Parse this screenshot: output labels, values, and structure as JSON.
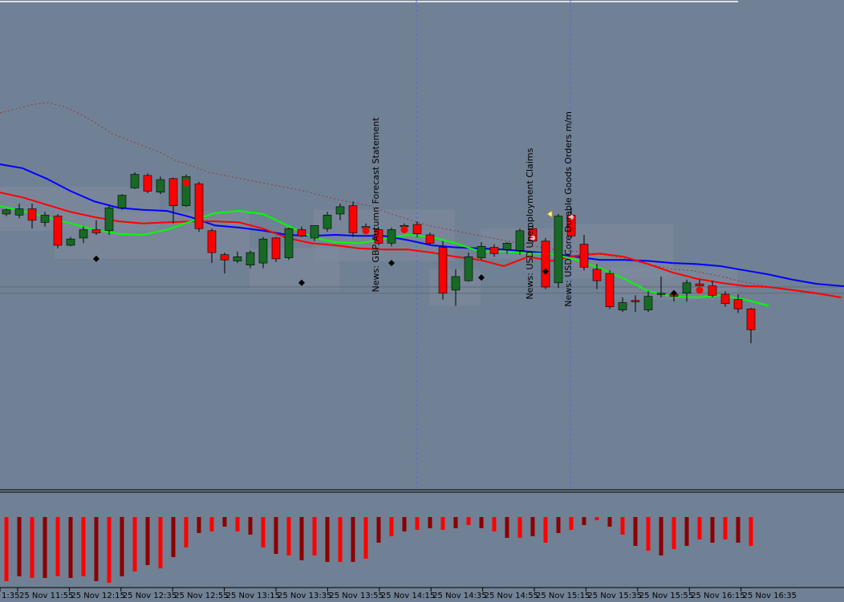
{
  "chart_data": {
    "type": "candlestick",
    "panels": [
      "price",
      "histogram"
    ],
    "colors": {
      "background": "#718195",
      "bull_candle": "#176a25",
      "bear_candle": "#ff0000",
      "wick": "#000000",
      "ma_blue": "#0000ff",
      "ma_red": "#ff0000",
      "ma_green": "#00ff00",
      "ma_dotted": "#8b3a3a",
      "zone": "#7f8b9c",
      "hist_bright": "#ff0000",
      "hist_dark": "#8b0000",
      "vline": "#5566cc"
    },
    "x_labels": [
      "1:35",
      "25 Nov 11:55",
      "25 Nov 12:15",
      "25 Nov 12:35",
      "25 Nov 12:55",
      "25 Nov 13:15",
      "25 Nov 13:35",
      "25 Nov 13:55",
      "25 Nov 14:15",
      "25 Nov 14:35",
      "25 Nov 14:55",
      "25 Nov 15:15",
      "25 Nov 15:35",
      "25 Nov 15:55",
      "25 Nov 16:15",
      "25 Nov 16:35"
    ],
    "candles": [
      {
        "o": 260,
        "h": 265,
        "l": 258,
        "c": 264
      },
      {
        "o": 259,
        "h": 270,
        "l": 256,
        "c": 265
      },
      {
        "o": 265,
        "h": 270,
        "l": 246,
        "c": 254
      },
      {
        "o": 252,
        "h": 262,
        "l": 248,
        "c": 259
      },
      {
        "o": 258,
        "h": 260,
        "l": 227,
        "c": 230
      },
      {
        "o": 230,
        "h": 238,
        "l": 229,
        "c": 236
      },
      {
        "o": 237,
        "h": 248,
        "l": 232,
        "c": 245
      },
      {
        "o": 245,
        "h": 254,
        "l": 240,
        "c": 242
      },
      {
        "o": 244,
        "h": 268,
        "l": 240,
        "c": 266
      },
      {
        "o": 266,
        "h": 279,
        "l": 264,
        "c": 278
      },
      {
        "o": 285,
        "h": 300,
        "l": 284,
        "c": 298
      },
      {
        "o": 297,
        "h": 299,
        "l": 280,
        "c": 282
      },
      {
        "o": 281,
        "h": 296,
        "l": 279,
        "c": 293
      },
      {
        "o": 294,
        "h": 295,
        "l": 251,
        "c": 268
      },
      {
        "o": 268,
        "h": 298,
        "l": 267,
        "c": 296
      },
      {
        "o": 289,
        "h": 291,
        "l": 243,
        "c": 246
      },
      {
        "o": 244,
        "h": 246,
        "l": 213,
        "c": 223
      },
      {
        "o": 221,
        "h": 223,
        "l": 203,
        "c": 216
      },
      {
        "o": 215,
        "h": 224,
        "l": 213,
        "c": 219
      },
      {
        "o": 211,
        "h": 225,
        "l": 208,
        "c": 223
      },
      {
        "o": 213,
        "h": 238,
        "l": 208,
        "c": 236
      },
      {
        "o": 237,
        "h": 238,
        "l": 214,
        "c": 217
      },
      {
        "o": 218,
        "h": 247,
        "l": 216,
        "c": 246
      },
      {
        "o": 245,
        "h": 248,
        "l": 238,
        "c": 239
      },
      {
        "o": 237,
        "h": 249,
        "l": 234,
        "c": 249
      },
      {
        "o": 246,
        "h": 262,
        "l": 243,
        "c": 259
      },
      {
        "o": 260,
        "h": 270,
        "l": 254,
        "c": 267
      },
      {
        "o": 268,
        "h": 272,
        "l": 238,
        "c": 242
      },
      {
        "o": 248,
        "h": 251,
        "l": 247,
        "c": 248
      },
      {
        "o": 245,
        "h": 247,
        "l": 230,
        "c": 232
      },
      {
        "o": 232,
        "h": 247,
        "l": 229,
        "c": 245
      },
      {
        "o": 248,
        "h": 251,
        "l": 245,
        "c": 249
      },
      {
        "o": 250,
        "h": 253,
        "l": 238,
        "c": 241
      },
      {
        "o": 240,
        "h": 242,
        "l": 230,
        "c": 232
      },
      {
        "o": 228,
        "h": 234,
        "l": 178,
        "c": 184
      },
      {
        "o": 187,
        "h": 207,
        "l": 172,
        "c": 200
      },
      {
        "o": 196,
        "h": 223,
        "l": 195,
        "c": 219
      },
      {
        "o": 218,
        "h": 233,
        "l": 216,
        "c": 229
      },
      {
        "o": 228,
        "h": 231,
        "l": 219,
        "c": 222
      },
      {
        "o": 226,
        "h": 233,
        "l": 222,
        "c": 232
      },
      {
        "o": 225,
        "h": 246,
        "l": 221,
        "c": 244
      },
      {
        "o": 246,
        "h": 250,
        "l": 232,
        "c": 234
      },
      {
        "o": 234,
        "h": 237,
        "l": 188,
        "c": 190
      },
      {
        "o": 194,
        "h": 260,
        "l": 189,
        "c": 258
      },
      {
        "o": 259,
        "h": 266,
        "l": 237,
        "c": 239
      },
      {
        "o": 231,
        "h": 240,
        "l": 206,
        "c": 209
      },
      {
        "o": 207,
        "h": 212,
        "l": 188,
        "c": 196
      },
      {
        "o": 203,
        "h": 206,
        "l": 169,
        "c": 171
      },
      {
        "o": 168,
        "h": 180,
        "l": 166,
        "c": 175
      },
      {
        "o": 177,
        "h": 182,
        "l": 166,
        "c": 176
      },
      {
        "o": 168,
        "h": 186,
        "l": 166,
        "c": 181
      },
      {
        "o": 183,
        "h": 200,
        "l": 180,
        "c": 184
      },
      {
        "o": 183,
        "h": 185,
        "l": 176,
        "c": 181
      },
      {
        "o": 184,
        "h": 197,
        "l": 176,
        "c": 194
      },
      {
        "o": 193,
        "h": 197,
        "l": 190,
        "c": 191
      },
      {
        "o": 191,
        "h": 196,
        "l": 180,
        "c": 182
      },
      {
        "o": 183,
        "h": 186,
        "l": 171,
        "c": 174
      },
      {
        "o": 178,
        "h": 183,
        "l": 165,
        "c": 169
      },
      {
        "o": 169,
        "h": 170,
        "l": 136,
        "c": 149
      }
    ],
    "ma_blue": [
      [
        0,
        308
      ],
      [
        10,
        304
      ],
      [
        20,
        294
      ],
      [
        30,
        282
      ],
      [
        40,
        272
      ],
      [
        50,
        266
      ],
      [
        60,
        264
      ],
      [
        70,
        263
      ],
      [
        80,
        257
      ],
      [
        90,
        249
      ],
      [
        100,
        247
      ],
      [
        110,
        244
      ],
      [
        120,
        240
      ],
      [
        130,
        239
      ],
      [
        140,
        240
      ],
      [
        150,
        239
      ],
      [
        160,
        239
      ],
      [
        170,
        235
      ],
      [
        180,
        230
      ],
      [
        190,
        228
      ],
      [
        200,
        227
      ],
      [
        210,
        226
      ],
      [
        220,
        224
      ],
      [
        230,
        222
      ],
      [
        240,
        219
      ],
      [
        250,
        216
      ],
      [
        260,
        216
      ],
      [
        270,
        215
      ],
      [
        280,
        213
      ],
      [
        290,
        212
      ],
      [
        300,
        210
      ],
      [
        310,
        206
      ],
      [
        320,
        202
      ],
      [
        330,
        197
      ],
      [
        340,
        193
      ],
      [
        350,
        191
      ],
      [
        355,
        190
      ]
    ],
    "ma_red": [
      [
        0,
        281
      ],
      [
        10,
        276
      ],
      [
        20,
        269
      ],
      [
        30,
        262
      ],
      [
        40,
        257
      ],
      [
        50,
        253
      ],
      [
        60,
        251
      ],
      [
        70,
        252
      ],
      [
        80,
        253
      ],
      [
        90,
        253
      ],
      [
        100,
        252
      ],
      [
        110,
        246
      ],
      [
        120,
        237
      ],
      [
        130,
        232
      ],
      [
        140,
        230
      ],
      [
        150,
        227
      ],
      [
        160,
        226
      ],
      [
        170,
        226
      ],
      [
        180,
        223
      ],
      [
        190,
        219
      ],
      [
        200,
        216
      ],
      [
        210,
        210
      ],
      [
        220,
        219
      ],
      [
        230,
        215
      ],
      [
        240,
        220
      ],
      [
        250,
        222
      ],
      [
        260,
        219
      ],
      [
        270,
        212
      ],
      [
        280,
        204
      ],
      [
        290,
        198
      ],
      [
        300,
        194
      ],
      [
        310,
        191
      ],
      [
        320,
        190
      ],
      [
        330,
        187
      ],
      [
        340,
        184
      ],
      [
        350,
        180
      ]
    ],
    "ma_green": [
      [
        0,
        268
      ],
      [
        10,
        263
      ],
      [
        20,
        257
      ],
      [
        30,
        251
      ],
      [
        40,
        245
      ],
      [
        50,
        241
      ],
      [
        60,
        240
      ],
      [
        70,
        245
      ],
      [
        80,
        253
      ],
      [
        90,
        261
      ],
      [
        100,
        263
      ],
      [
        110,
        260
      ],
      [
        120,
        249
      ],
      [
        130,
        238
      ],
      [
        140,
        233
      ],
      [
        150,
        232
      ],
      [
        160,
        236
      ],
      [
        170,
        240
      ],
      [
        180,
        238
      ],
      [
        190,
        232
      ],
      [
        200,
        224
      ],
      [
        210,
        224
      ],
      [
        220,
        222
      ],
      [
        230,
        222
      ],
      [
        240,
        216
      ],
      [
        250,
        208
      ],
      [
        260,
        198
      ],
      [
        270,
        186
      ],
      [
        280,
        181
      ],
      [
        290,
        180
      ],
      [
        300,
        182
      ],
      [
        310,
        178
      ],
      [
        320,
        172
      ]
    ],
    "ma_dotted": [
      [
        0,
        357
      ],
      [
        20,
        361
      ],
      [
        40,
        365
      ],
      [
        60,
        367
      ],
      [
        80,
        363
      ],
      [
        100,
        356
      ],
      [
        120,
        347
      ],
      [
        140,
        337
      ],
      [
        160,
        331
      ],
      [
        180,
        325
      ],
      [
        200,
        319
      ],
      [
        220,
        311
      ],
      [
        240,
        306
      ],
      [
        260,
        300
      ],
      [
        280,
        297
      ],
      [
        300,
        294
      ],
      [
        320,
        291
      ],
      [
        340,
        288
      ],
      [
        360,
        285
      ],
      [
        380,
        282
      ],
      [
        400,
        278
      ],
      [
        420,
        274
      ],
      [
        440,
        271
      ],
      [
        460,
        268
      ],
      [
        480,
        262
      ],
      [
        500,
        257
      ],
      [
        520,
        252
      ],
      [
        540,
        248
      ],
      [
        560,
        245
      ],
      [
        580,
        242
      ],
      [
        600,
        239
      ],
      [
        620,
        236
      ],
      [
        640,
        233
      ],
      [
        660,
        230
      ],
      [
        680,
        227
      ],
      [
        700,
        225
      ],
      [
        720,
        224
      ],
      [
        740,
        222
      ],
      [
        760,
        220
      ],
      [
        780,
        217
      ],
      [
        800,
        213
      ],
      [
        820,
        210
      ],
      [
        840,
        207
      ],
      [
        860,
        206
      ],
      [
        880,
        203
      ],
      [
        900,
        200
      ],
      [
        920,
        196
      ],
      [
        940,
        193
      ],
      [
        960,
        190
      ],
      [
        980,
        188
      ],
      [
        1000,
        185
      ],
      [
        1020,
        183
      ],
      [
        1040,
        181
      ],
      [
        1052,
        180
      ]
    ],
    "zones": [
      {
        "x1": 0,
        "x2": 199,
        "top": 286,
        "bottom": 244
      },
      {
        "x1": 68,
        "x2": 311,
        "top": 262,
        "bottom": 217
      },
      {
        "x1": 311,
        "x2": 423,
        "top": 227,
        "bottom": 188
      },
      {
        "x1": 391,
        "x2": 567,
        "top": 264,
        "bottom": 215
      },
      {
        "x1": 535,
        "x2": 599,
        "top": 207,
        "bottom": 172
      },
      {
        "x1": 599,
        "x2": 711,
        "top": 246,
        "bottom": 217
      },
      {
        "x1": 711,
        "x2": 839,
        "top": 250,
        "bottom": 198
      },
      {
        "x1": 759,
        "x2": 919,
        "top": 209,
        "bottom": 178
      }
    ],
    "red_dots": [
      [
        14,
        290
      ],
      [
        28,
        244
      ],
      [
        31,
        245
      ],
      [
        54,
        187
      ]
    ],
    "pink_dots": [
      [
        41,
        237
      ],
      [
        44,
        257
      ]
    ],
    "black_diamonds": [
      [
        7,
        217
      ],
      [
        23,
        194
      ],
      [
        30,
        213
      ],
      [
        37,
        199
      ],
      [
        42,
        205
      ],
      [
        52,
        184
      ]
    ],
    "arrow_marker": [
      42,
      260
    ],
    "news_vlines": [
      519,
      711
    ],
    "price_hlines": [
      190,
      184
    ],
    "news_labels": [
      {
        "text": "News: GBP Autumn Forecast Statement",
        "x": 29,
        "y": 185
      },
      {
        "text": "News: USD Unemployment Claims",
        "x": 41,
        "y": 178
      },
      {
        "text": "News: USD Core Durable Goods Orders m/m",
        "x": 44,
        "y": 171
      }
    ],
    "histogram": [
      -40,
      -37,
      -38,
      -38,
      -37,
      -38,
      -37,
      -40,
      -41,
      -37,
      -34,
      -30,
      -32,
      -25,
      -19,
      -10,
      -9,
      -6,
      -9,
      -11,
      -19,
      -23,
      -24,
      -27,
      -24,
      -28,
      -28,
      -28,
      -26,
      -16,
      -12,
      -9,
      -8,
      -7,
      -8,
      -7,
      -5,
      -7,
      -9,
      -13,
      -13,
      -12,
      -16,
      -10,
      -8,
      -5,
      -2,
      -6,
      -11,
      -18,
      -21,
      -24,
      -20,
      -18,
      -14,
      -16,
      -14,
      -16,
      -18
    ]
  }
}
